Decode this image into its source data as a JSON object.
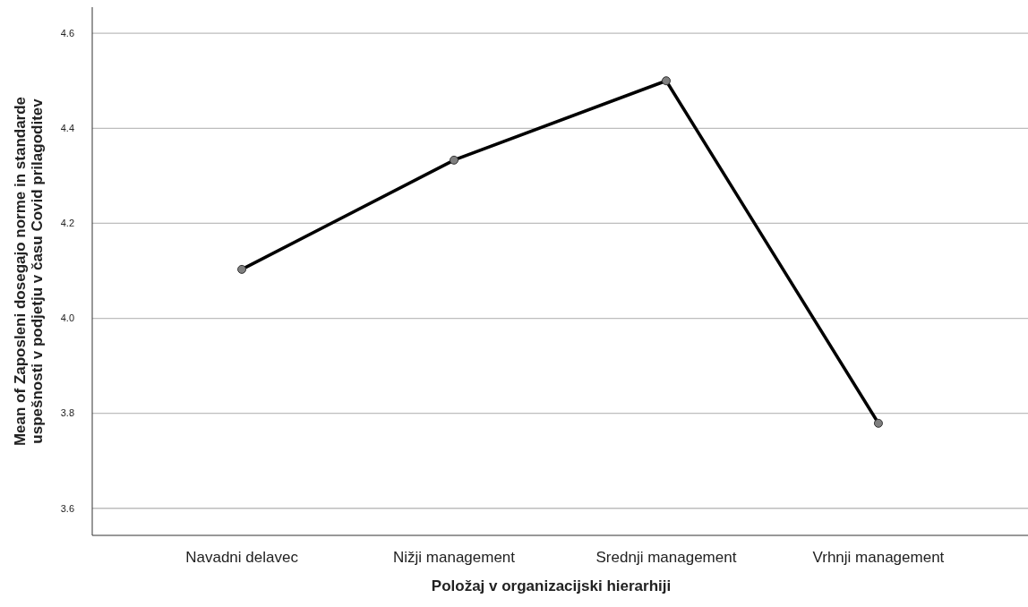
{
  "chart_data": {
    "type": "line",
    "xlabel": "Položaj v organizacijski hierarhiji",
    "ylabel": "Mean of Zaposleni dosegajo norme in standarde uspešnosti v podjetju v času Covid prilagoditev",
    "categories": [
      "Navadni delavec",
      "Nižji management",
      "Srednji management",
      "Vrhnji management"
    ],
    "series": [
      {
        "color": "#000000",
        "values": [
          4.103,
          4.333,
          4.5,
          3.779
        ]
      }
    ],
    "ylim": [
      3.543,
      4.655
    ],
    "yticks": [
      {
        "value": 3.6,
        "label": "3.6"
      },
      {
        "value": 3.8,
        "label": "3.8"
      },
      {
        "value": 4.0,
        "label": "4.0"
      },
      {
        "value": 4.2,
        "label": "4.2"
      },
      {
        "value": 4.4,
        "label": "4.4"
      },
      {
        "value": 4.6,
        "label": "4.6"
      }
    ],
    "grid": "y",
    "marker": "circle",
    "line_style": "solid"
  }
}
